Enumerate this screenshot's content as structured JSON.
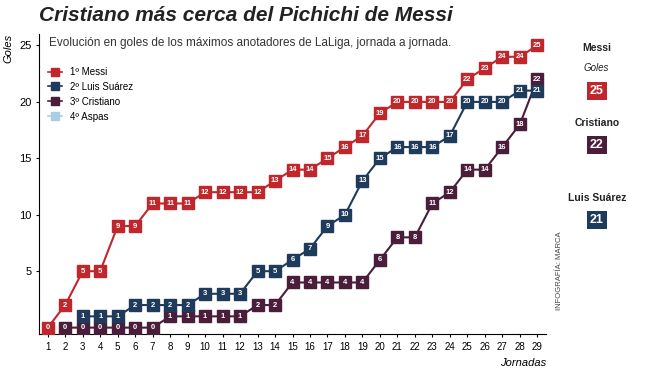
{
  "chart_data": {
    "type": "line",
    "title": "Cristiano más cerca del Pichichi de Messi",
    "subtitle": "Evolución en goles de los máximos anotadores de LaLiga, jornada a jornada.",
    "x_label": "Jornadas",
    "y_label": "Goles",
    "x": [
      1,
      2,
      3,
      4,
      5,
      6,
      7,
      8,
      9,
      10,
      11,
      12,
      13,
      14,
      15,
      16,
      17,
      18,
      19,
      20,
      21,
      22,
      23,
      24,
      25,
      26,
      27,
      28,
      29
    ],
    "xlim": [
      0.5,
      29.5
    ],
    "xticks": [
      1,
      2,
      3,
      4,
      5,
      6,
      7,
      8,
      9,
      10,
      11,
      12,
      13,
      14,
      15,
      16,
      17,
      18,
      19,
      20,
      21,
      22,
      23,
      24,
      25,
      26,
      27,
      28,
      29
    ],
    "ylim": [
      -0.6,
      26
    ],
    "yticks": [
      5,
      10,
      15,
      20,
      25
    ],
    "grid": false,
    "legend": "upper left",
    "marker": "square",
    "data_labels": true,
    "series": [
      {
        "name": "1º Messi",
        "color": "#c0272d",
        "values": [
          0,
          2,
          5,
          5,
          9,
          9,
          11,
          11,
          11,
          12,
          12,
          12,
          12,
          13,
          14,
          14,
          15,
          16,
          17,
          19,
          20,
          20,
          20,
          20,
          22,
          23,
          24,
          24,
          25
        ]
      },
      {
        "name": "2º Luis Suárez",
        "color": "#1f3b5c",
        "values": [
          null,
          null,
          1,
          1,
          1,
          2,
          2,
          2,
          2,
          3,
          3,
          3,
          5,
          5,
          6,
          7,
          9,
          10,
          13,
          15,
          16,
          16,
          16,
          17,
          20,
          20,
          20,
          21,
          21
        ]
      },
      {
        "name": "3º Cristiano",
        "color": "#4a1e3a",
        "values": [
          null,
          0,
          0,
          0,
          0,
          0,
          0,
          1,
          1,
          1,
          1,
          1,
          2,
          2,
          4,
          4,
          4,
          4,
          4,
          6,
          8,
          8,
          11,
          12,
          14,
          14,
          16,
          18,
          22
        ]
      },
      {
        "name": "4º Aspas",
        "color": "#a9cfe6",
        "values": [
          null,
          null,
          null,
          null,
          null,
          null,
          null,
          null,
          null,
          null,
          null,
          null,
          null,
          null,
          null,
          null,
          null,
          null,
          null,
          null,
          null,
          null,
          null,
          null,
          null,
          null,
          null,
          null,
          null
        ]
      }
    ],
    "side_unit": "Goles",
    "side_labels": [
      {
        "name": "Messi",
        "value": 25,
        "color": "#c0272d"
      },
      {
        "name": "Cristiano",
        "value": 22,
        "color": "#4a1e3a"
      },
      {
        "name": "Luis Suárez",
        "value": 21,
        "color": "#1f3b5c"
      }
    ],
    "credit": "INFOGRAFÍA: MARCA"
  }
}
